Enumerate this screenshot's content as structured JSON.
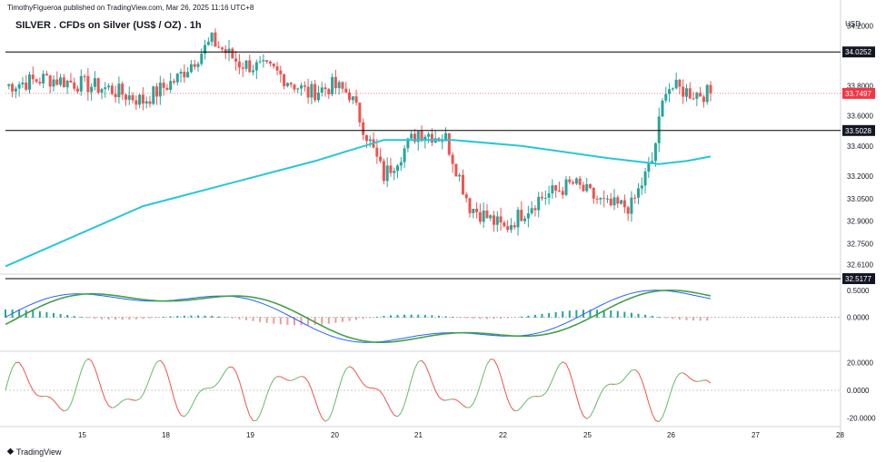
{
  "header": {
    "publisher": "TimothyFigueroa published on TradingView.com, Mar 26, 2025 11:16 UTC+8",
    "title": "SILVER . CFDs on Silver (US$ / OZ) . 1h",
    "currency": "USD"
  },
  "footer": {
    "brand": "TradingView",
    "logo_icon": "tradingview-logo-icon"
  },
  "colors": {
    "up": "#26a69a",
    "down": "#ef5350",
    "ma": "#26c6da",
    "hline": "#000000",
    "price_line": "#f23645",
    "macd_line": "#2962ff",
    "signal_up": "#43a047",
    "signal_down": "#b71c1c"
  },
  "chart_data": [
    {
      "type": "candlestick",
      "title": "SILVER . CFDs on Silver (US$ / OZ) . 1h",
      "x_ticks": [
        "15",
        "18",
        "19",
        "20",
        "21",
        "22",
        "25",
        "26",
        "27",
        "28"
      ],
      "y_ticks": [
        "34.2000",
        "33.8000",
        "33.6000",
        "33.4000",
        "33.2000",
        "33.0500",
        "32.9000",
        "32.7500",
        "32.6100"
      ],
      "ylim": [
        32.56,
        34.25
      ],
      "horizontal_levels": [
        "34.0252",
        "33.5028",
        "32.5177"
      ],
      "current_price": "33.7497",
      "moving_average": {
        "approx": [
          [
            0,
            32.6
          ],
          [
            40,
            33.0
          ],
          [
            90,
            33.3
          ],
          [
            110,
            33.44
          ],
          [
            130,
            33.44
          ],
          [
            150,
            33.4
          ],
          [
            175,
            33.32
          ],
          [
            190,
            33.28
          ],
          [
            198,
            33.3
          ],
          [
            205,
            33.33
          ]
        ]
      },
      "series_approx_close": [
        [
          0,
          33.8
        ],
        [
          12,
          33.85
        ],
        [
          20,
          33.82
        ],
        [
          30,
          33.78
        ],
        [
          40,
          33.7
        ],
        [
          50,
          33.85
        ],
        [
          60,
          34.1
        ],
        [
          68,
          33.95
        ],
        [
          78,
          33.9
        ],
        [
          88,
          33.75
        ],
        [
          95,
          33.8
        ],
        [
          100,
          33.75
        ],
        [
          110,
          33.2
        ],
        [
          120,
          33.5
        ],
        [
          128,
          33.45
        ],
        [
          135,
          33.0
        ],
        [
          145,
          32.85
        ],
        [
          155,
          33.05
        ],
        [
          165,
          33.15
        ],
        [
          175,
          33.0
        ],
        [
          182,
          33.0
        ],
        [
          188,
          33.3
        ],
        [
          192,
          33.8
        ],
        [
          200,
          33.75
        ],
        [
          205,
          33.75
        ]
      ]
    },
    {
      "type": "line",
      "name": "oscillator-1",
      "y_ticks": [
        "0.5000",
        "0.0000"
      ],
      "ylim": [
        -0.6,
        0.75
      ]
    },
    {
      "type": "line",
      "name": "oscillator-2",
      "y_ticks": [
        "20.0000",
        "0.0000",
        "-20.0000"
      ],
      "ylim": [
        -25,
        25
      ]
    }
  ]
}
